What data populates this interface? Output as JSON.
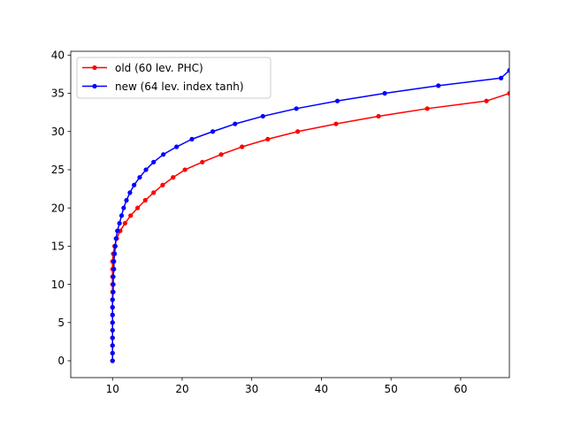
{
  "chart_data": {
    "type": "line",
    "title": "",
    "xlabel": "",
    "ylabel": "",
    "xlim": [
      4,
      67
    ],
    "ylim": [
      -2.2,
      40.5
    ],
    "xticks": [
      10,
      20,
      30,
      40,
      50,
      60
    ],
    "yticks": [
      0,
      5,
      10,
      15,
      20,
      25,
      30,
      35,
      40
    ],
    "grid": false,
    "legend_position": "top-left",
    "series": [
      {
        "name": "old (60 lev. PHC)",
        "color": "#ff0000",
        "x": [
          10.0,
          10.0,
          10.0,
          10.0,
          10.0,
          10.0,
          10.0,
          10.0,
          10.0,
          10.0,
          10.0,
          10.0,
          10.0,
          10.0,
          10.1,
          10.3,
          10.6,
          11.1,
          11.8,
          12.6,
          13.6,
          14.7,
          15.9,
          17.2,
          18.7,
          20.4,
          22.9,
          25.6,
          28.6,
          32.3,
          36.6,
          42.1,
          48.2,
          55.2,
          63.7,
          67.0
        ],
        "y": [
          0,
          1,
          2,
          3,
          4,
          5,
          6,
          7,
          8,
          9,
          10,
          11,
          12,
          13,
          14,
          15,
          16,
          17,
          18,
          19,
          20,
          21,
          22,
          23,
          24,
          25,
          26,
          27,
          28,
          29,
          30,
          31,
          32,
          33,
          34,
          35
        ],
        "y_note": ""
      },
      {
        "name": "new (64 lev. index tanh)",
        "color": "#0000ff",
        "x": [
          10.0,
          10.0,
          10.0,
          10.0,
          10.0,
          10.0,
          10.0,
          10.0,
          10.0,
          10.1,
          10.1,
          10.1,
          10.2,
          10.2,
          10.3,
          10.4,
          10.5,
          10.7,
          11.0,
          11.3,
          11.6,
          12.0,
          12.5,
          13.1,
          13.9,
          14.8,
          15.9,
          17.3,
          19.2,
          21.4,
          24.4,
          27.6,
          31.6,
          36.4,
          42.3,
          49.1,
          56.8,
          65.8,
          67.0
        ],
        "y": [
          0,
          1,
          2,
          3,
          4,
          5,
          6,
          7,
          8,
          9,
          10,
          11,
          12,
          13,
          14,
          15,
          16,
          17,
          18,
          19,
          20,
          21,
          22,
          23,
          24,
          25,
          26,
          27,
          28,
          29,
          30,
          31,
          32,
          33,
          34,
          35,
          36,
          37,
          38
        ]
      }
    ]
  }
}
